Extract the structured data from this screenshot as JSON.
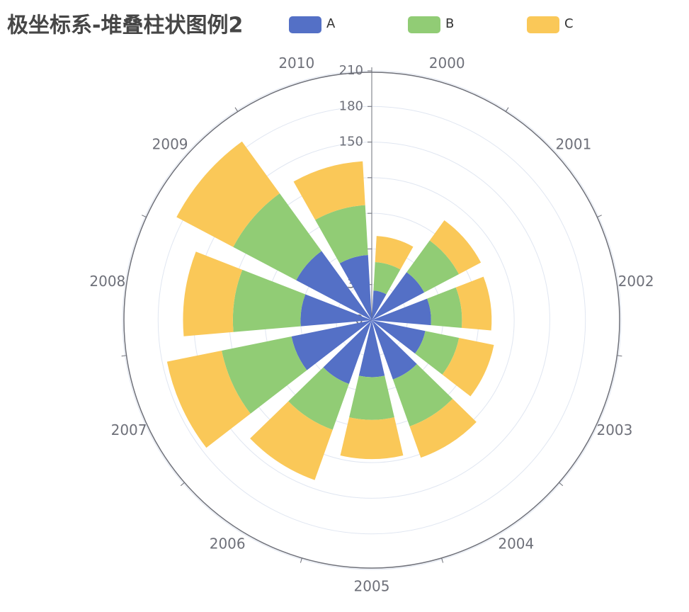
{
  "chart_data": {
    "type": "polar_stacked_bar",
    "title": "极坐标系-堆叠柱状图例2",
    "categories": [
      "2000",
      "2001",
      "2002",
      "2003",
      "2004",
      "2005",
      "2006",
      "2007",
      "2008",
      "2009",
      "2010"
    ],
    "series": [
      {
        "name": "A",
        "color": "#5470c6",
        "values": [
          25,
          50,
          50,
          46,
          53,
          48,
          57,
          69,
          60,
          72,
          55
        ]
      },
      {
        "name": "B",
        "color": "#91cc75",
        "values": [
          24,
          33,
          26,
          29,
          42,
          36,
          41,
          60,
          57,
          60,
          42
        ]
      },
      {
        "name": "C",
        "color": "#fac858",
        "values": [
          22,
          21,
          25,
          30,
          28,
          33,
          45,
          47,
          42,
          54,
          37
        ]
      }
    ],
    "rlim": [
      0,
      210
    ],
    "rticks": [
      0,
      30,
      60,
      90,
      120,
      150,
      180,
      210
    ],
    "grid": true,
    "legend": "top"
  }
}
